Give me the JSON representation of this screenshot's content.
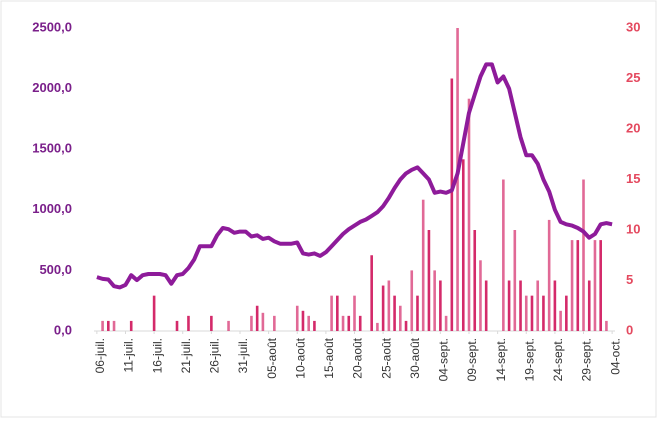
{
  "chart_data": {
    "type": "bar-line",
    "categories": [
      "06-juil.",
      null,
      null,
      null,
      null,
      "11-juil.",
      null,
      null,
      null,
      null,
      "16-juil.",
      null,
      null,
      null,
      null,
      "21-juil.",
      null,
      null,
      null,
      null,
      "26-juil.",
      null,
      null,
      null,
      null,
      "31-juil.",
      null,
      null,
      null,
      null,
      "05-août",
      null,
      null,
      null,
      null,
      "10-août",
      null,
      null,
      null,
      null,
      "15-août",
      null,
      null,
      null,
      null,
      "20-août",
      null,
      null,
      null,
      null,
      "25-août",
      null,
      null,
      null,
      null,
      "30-août",
      null,
      null,
      null,
      null,
      "04-sept.",
      null,
      null,
      null,
      null,
      "09-sept.",
      null,
      null,
      null,
      null,
      "14-sept.",
      null,
      null,
      null,
      null,
      "19-sept.",
      null,
      null,
      null,
      null,
      "24-sept.",
      null,
      null,
      null,
      null,
      "29-sept.",
      null,
      null,
      null,
      null,
      "04-oct."
    ],
    "series": [
      {
        "type": "bar",
        "axis": "y2",
        "color": "#d42a6a",
        "values": [
          0,
          1,
          1,
          1,
          0,
          0,
          1,
          0,
          0,
          0,
          3.5,
          0,
          0,
          0,
          1,
          0,
          1.5,
          0,
          0,
          0,
          1.5,
          0,
          0,
          1,
          0,
          0,
          0,
          1.5,
          2.5,
          1.8,
          0,
          1.5,
          0,
          0,
          0,
          2.5,
          2,
          1.5,
          1,
          0,
          0,
          3.5,
          3.5,
          1.5,
          1.5,
          3.5,
          1.5,
          0,
          7.5,
          0.8,
          4.5,
          5,
          3.5,
          2.5,
          1,
          6,
          3.5,
          13,
          10,
          6,
          5,
          1.5,
          25,
          30,
          17,
          23,
          10,
          7,
          5,
          0,
          0,
          15,
          5,
          10,
          5,
          3.5,
          3.5,
          5,
          3.5,
          11,
          5,
          2,
          3.5,
          9,
          9,
          15,
          5,
          9,
          9,
          1,
          0
        ]
      },
      {
        "type": "line",
        "axis": "y",
        "color": "#8e1b9a",
        "values": [
          445,
          430,
          425,
          370,
          360,
          380,
          460,
          420,
          460,
          470,
          470,
          470,
          460,
          390,
          460,
          470,
          520,
          590,
          700,
          700,
          700,
          790,
          850,
          840,
          810,
          820,
          820,
          780,
          790,
          760,
          770,
          740,
          720,
          720,
          720,
          730,
          640,
          630,
          640,
          620,
          650,
          700,
          750,
          800,
          840,
          870,
          900,
          920,
          950,
          980,
          1030,
          1100,
          1180,
          1250,
          1300,
          1330,
          1350,
          1300,
          1250,
          1140,
          1150,
          1140,
          1160,
          1300,
          1550,
          1800,
          1950,
          2100,
          2200,
          2200,
          2050,
          2100,
          2000,
          1800,
          1600,
          1450,
          1450,
          1380,
          1250,
          1150,
          1000,
          900,
          880,
          870,
          850,
          820,
          770,
          800,
          880,
          890,
          880
        ]
      }
    ],
    "ylim": [
      0,
      2500
    ],
    "yticks": [
      {
        "value": 0,
        "label": "0,0"
      },
      {
        "value": 500,
        "label": "500,0"
      },
      {
        "value": 1000,
        "label": "1000,0"
      },
      {
        "value": 1500,
        "label": "1500,0"
      },
      {
        "value": 2000,
        "label": "2000,0"
      },
      {
        "value": 2500,
        "label": "2500,0"
      }
    ],
    "y2lim": [
      0,
      30
    ],
    "y2ticks": [
      0,
      5,
      10,
      15,
      20,
      25,
      30
    ],
    "ytick_color": "#7a1f8a",
    "y2tick_color": "#e4495f",
    "grid": false
  }
}
